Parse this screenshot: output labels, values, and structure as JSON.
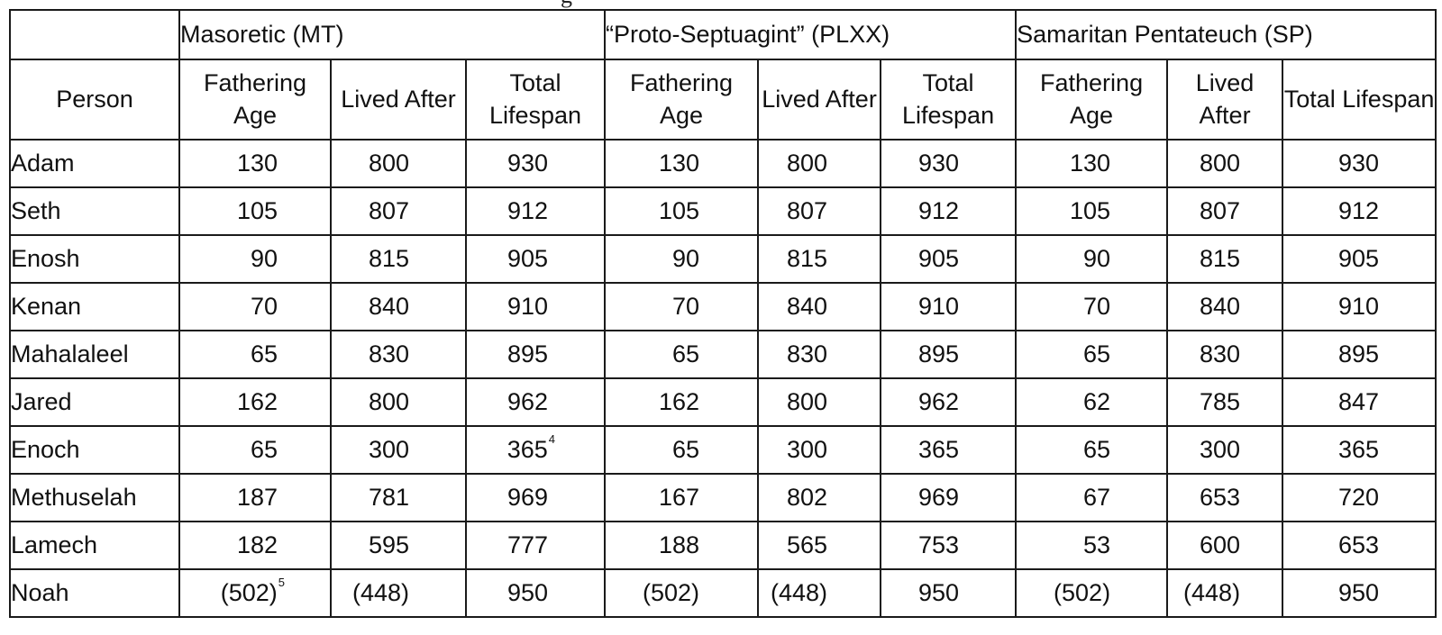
{
  "table": {
    "corner": "",
    "person_header": "Person",
    "groups": [
      {
        "label": "Masoretic (MT)"
      },
      {
        "label": "“Proto-Septuagint” (PLXX)"
      },
      {
        "label": "Samaritan Pentateuch (SP)"
      }
    ],
    "subheaders": [
      "Fathering Age",
      "Lived After",
      "Total Lifespan",
      "Fathering Age",
      "Lived After",
      "Total Lifespan",
      "Fathering Age",
      "Lived After",
      "Total Lifespan"
    ],
    "rows": [
      {
        "name": "Adam",
        "cells": [
          {
            "v": "130"
          },
          {
            "v": "800"
          },
          {
            "v": "930"
          },
          {
            "v": "130"
          },
          {
            "v": "800"
          },
          {
            "v": "930"
          },
          {
            "v": "130"
          },
          {
            "v": "800"
          },
          {
            "v": "930"
          }
        ]
      },
      {
        "name": "Seth",
        "cells": [
          {
            "v": "105"
          },
          {
            "v": "807"
          },
          {
            "v": "912"
          },
          {
            "v": "105"
          },
          {
            "v": "807"
          },
          {
            "v": "912"
          },
          {
            "v": "105"
          },
          {
            "v": "807"
          },
          {
            "v": "912"
          }
        ]
      },
      {
        "name": "Enosh",
        "cells": [
          {
            "v": "90"
          },
          {
            "v": "815"
          },
          {
            "v": "905"
          },
          {
            "v": "90"
          },
          {
            "v": "815"
          },
          {
            "v": "905"
          },
          {
            "v": "90"
          },
          {
            "v": "815"
          },
          {
            "v": "905"
          }
        ]
      },
      {
        "name": "Kenan",
        "cells": [
          {
            "v": "70"
          },
          {
            "v": "840"
          },
          {
            "v": "910"
          },
          {
            "v": "70"
          },
          {
            "v": "840"
          },
          {
            "v": "910"
          },
          {
            "v": "70"
          },
          {
            "v": "840"
          },
          {
            "v": "910"
          }
        ]
      },
      {
        "name": "Mahalaleel",
        "cells": [
          {
            "v": "65"
          },
          {
            "v": "830"
          },
          {
            "v": "895"
          },
          {
            "v": "65"
          },
          {
            "v": "830"
          },
          {
            "v": "895"
          },
          {
            "v": "65"
          },
          {
            "v": "830"
          },
          {
            "v": "895"
          }
        ]
      },
      {
        "name": "Jared",
        "cells": [
          {
            "v": "162"
          },
          {
            "v": "800"
          },
          {
            "v": "962"
          },
          {
            "v": "162"
          },
          {
            "v": "800"
          },
          {
            "v": "962"
          },
          {
            "v": "62"
          },
          {
            "v": "785"
          },
          {
            "v": "847"
          }
        ]
      },
      {
        "name": "Enoch",
        "cells": [
          {
            "v": "65"
          },
          {
            "v": "300"
          },
          {
            "v": "365",
            "fn": "4"
          },
          {
            "v": "65"
          },
          {
            "v": "300"
          },
          {
            "v": "365"
          },
          {
            "v": "65"
          },
          {
            "v": "300"
          },
          {
            "v": "365"
          }
        ]
      },
      {
        "name": "Methuselah",
        "cells": [
          {
            "v": "187"
          },
          {
            "v": "781"
          },
          {
            "v": "969"
          },
          {
            "v": "167"
          },
          {
            "v": "802"
          },
          {
            "v": "969"
          },
          {
            "v": "67"
          },
          {
            "v": "653"
          },
          {
            "v": "720"
          }
        ]
      },
      {
        "name": "Lamech",
        "cells": [
          {
            "v": "182"
          },
          {
            "v": "595"
          },
          {
            "v": "777"
          },
          {
            "v": "188"
          },
          {
            "v": "565"
          },
          {
            "v": "753"
          },
          {
            "v": "53"
          },
          {
            "v": "600"
          },
          {
            "v": "653"
          }
        ]
      },
      {
        "name": "Noah",
        "cells": [
          {
            "v": "(502)",
            "fn": "5"
          },
          {
            "v": "(448)"
          },
          {
            "v": "950"
          },
          {
            "v": "(502)"
          },
          {
            "v": "(448)"
          },
          {
            "v": "950"
          },
          {
            "v": "(502)"
          },
          {
            "v": "(448)"
          },
          {
            "v": "950"
          }
        ]
      }
    ]
  }
}
